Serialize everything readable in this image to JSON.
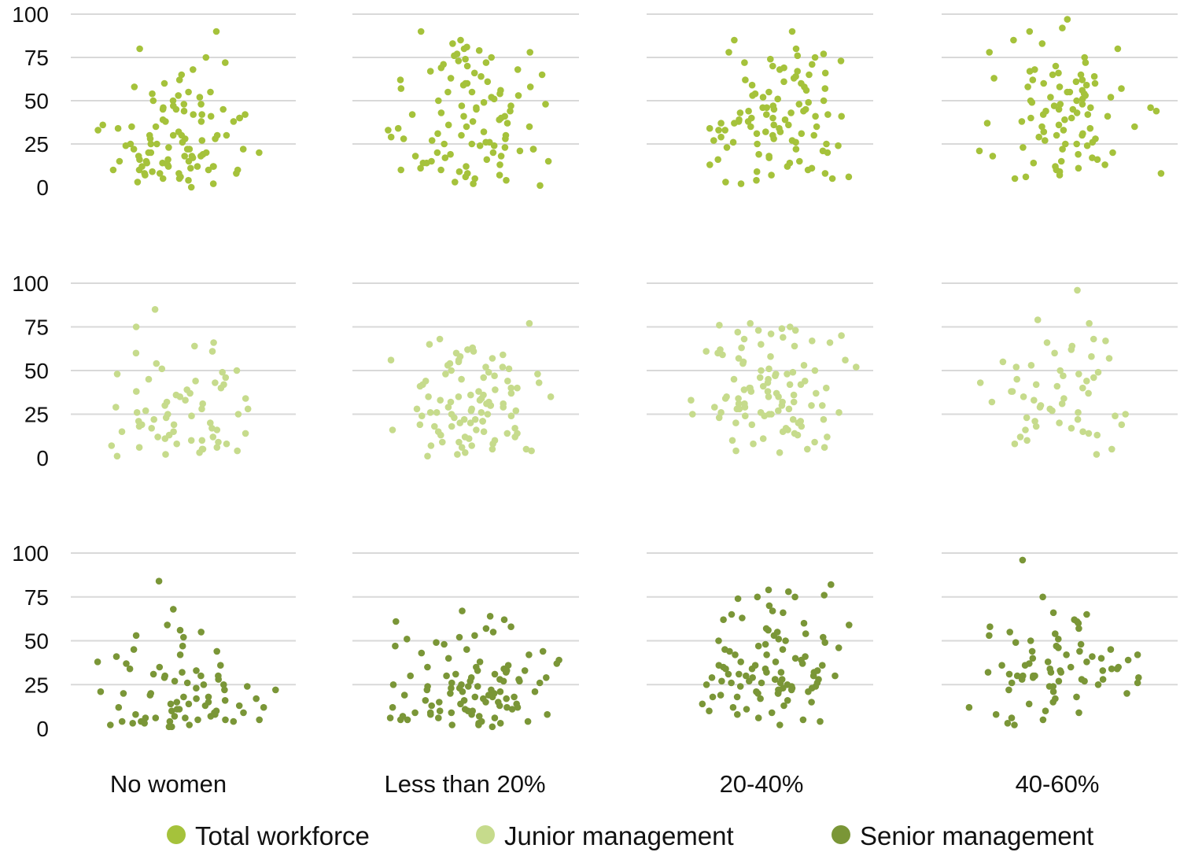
{
  "chart_data": {
    "type": "scatter",
    "title": "",
    "layout": "small multiples (3 rows x 4 columns), jittered strip plots",
    "columns": [
      "No women",
      "Less than 20%",
      "20-40%",
      "40-60%"
    ],
    "rows": [
      "Total workforce",
      "Junior management",
      "Senior management"
    ],
    "y_ticks": [
      0,
      25,
      50,
      75,
      100
    ],
    "y_tick_labels": [
      "0",
      "25",
      "50",
      "75",
      "100"
    ],
    "ylim": [
      0,
      100
    ],
    "grid": true,
    "legend_position": "bottom",
    "legend": [
      {
        "name": "Total workforce",
        "color": "#a5c23b"
      },
      {
        "name": "Junior management",
        "color": "#c6db8c"
      },
      {
        "name": "Senior management",
        "color": "#7a9637"
      }
    ],
    "panels": [
      {
        "row": "Total workforce",
        "column": "No women",
        "y": [
          12,
          18,
          22,
          25,
          5,
          8,
          15,
          30,
          40,
          20,
          10,
          14,
          28,
          35,
          45,
          50,
          60,
          38,
          22,
          18,
          16,
          12,
          8,
          6,
          4,
          25,
          32,
          42,
          55,
          65,
          72,
          80,
          45,
          30,
          20,
          10,
          8,
          12,
          15,
          18,
          22,
          25,
          28,
          30,
          35,
          40,
          48,
          52,
          58,
          62,
          68,
          75,
          90,
          55,
          45,
          38,
          28,
          20,
          15,
          10,
          5,
          3,
          2,
          0,
          12,
          18,
          24,
          30,
          36,
          42,
          48,
          54,
          20,
          16,
          14,
          12,
          10,
          8,
          22,
          26,
          30,
          34,
          38,
          42,
          46,
          50,
          23,
          11,
          47,
          53,
          19,
          27,
          33,
          39,
          41,
          44,
          9,
          7,
          13,
          17
        ]
      },
      {
        "row": "Total workforce",
        "column": "Less than 20%",
        "y": [
          5,
          10,
          15,
          20,
          25,
          30,
          35,
          40,
          45,
          50,
          55,
          60,
          65,
          70,
          75,
          80,
          85,
          90,
          67,
          42,
          38,
          22,
          18,
          12,
          8,
          3,
          28,
          33,
          48,
          52,
          58,
          62,
          24,
          26,
          27,
          29,
          31,
          34,
          36,
          14,
          16,
          19,
          21,
          23,
          11,
          9,
          7,
          44,
          46,
          49,
          53,
          57,
          61,
          64,
          69,
          72,
          77,
          17,
          13,
          6,
          4,
          2,
          1,
          32,
          37,
          41,
          43,
          47,
          51,
          54,
          56,
          59,
          63,
          66,
          68,
          71,
          73,
          74,
          76,
          78,
          79,
          81,
          83,
          15,
          20,
          25,
          30,
          35,
          22,
          24,
          26,
          28,
          18,
          14,
          10,
          39,
          41,
          47,
          55,
          60
        ]
      },
      {
        "row": "Total workforce",
        "column": "20-40%",
        "y": [
          5,
          10,
          15,
          20,
          25,
          30,
          35,
          40,
          45,
          50,
          55,
          60,
          65,
          70,
          75,
          80,
          85,
          90,
          3,
          8,
          12,
          18,
          22,
          28,
          32,
          38,
          42,
          48,
          52,
          58,
          62,
          68,
          72,
          78,
          24,
          26,
          34,
          36,
          44,
          46,
          54,
          56,
          64,
          66,
          74,
          76,
          14,
          16,
          29,
          31,
          39,
          41,
          49,
          51,
          59,
          61,
          69,
          71,
          27,
          33,
          37,
          43,
          47,
          53,
          57,
          63,
          67,
          73,
          77,
          2,
          6,
          11,
          17,
          21,
          23,
          19,
          13,
          9,
          7,
          4,
          35,
          36,
          37,
          38,
          39,
          30,
          31,
          32,
          33,
          34,
          40,
          41,
          42,
          43,
          44,
          45,
          46,
          25,
          26,
          27
        ]
      },
      {
        "row": "Total workforce",
        "column": "40-60%",
        "y": [
          5,
          10,
          15,
          20,
          25,
          30,
          35,
          40,
          45,
          50,
          55,
          60,
          65,
          70,
          75,
          80,
          85,
          90,
          97,
          92,
          83,
          78,
          72,
          68,
          62,
          58,
          52,
          48,
          42,
          38,
          32,
          28,
          22,
          18,
          12,
          8,
          24,
          26,
          44,
          46,
          54,
          56,
          64,
          66,
          34,
          36,
          14,
          16,
          47,
          49,
          51,
          53,
          57,
          59,
          61,
          63,
          41,
          43,
          37,
          39,
          29,
          31,
          27,
          33,
          23,
          21,
          19,
          17,
          13,
          11,
          9,
          7,
          6,
          45,
          50,
          55,
          40,
          35,
          30,
          25,
          46,
          48,
          52,
          44,
          42,
          58,
          60,
          62,
          65,
          67
        ]
      },
      {
        "row": "Junior management",
        "column": "No women",
        "y": [
          66,
          19,
          15,
          17,
          10,
          5,
          8,
          12,
          20,
          25,
          28,
          30,
          35,
          40,
          45,
          50,
          54,
          60,
          64,
          75,
          85,
          61,
          48,
          43,
          37,
          22,
          18,
          14,
          9,
          6,
          3,
          2,
          1,
          4,
          7,
          11,
          13,
          16,
          21,
          24,
          27,
          29,
          33,
          38,
          46,
          51,
          26,
          23,
          31,
          36,
          42,
          15,
          12,
          10,
          8,
          6,
          5,
          34,
          39,
          44,
          49,
          32,
          19,
          17,
          25,
          28
        ]
      },
      {
        "row": "Junior management",
        "column": "Less than 20%",
        "y": [
          54,
          29,
          13,
          5,
          20,
          25,
          30,
          35,
          40,
          45,
          50,
          55,
          60,
          65,
          68,
          77,
          10,
          15,
          8,
          3,
          2,
          1,
          4,
          6,
          7,
          9,
          11,
          12,
          14,
          16,
          18,
          21,
          22,
          23,
          24,
          26,
          27,
          28,
          31,
          32,
          33,
          34,
          36,
          37,
          38,
          39,
          41,
          42,
          43,
          44,
          46,
          47,
          48,
          49,
          51,
          52,
          53,
          56,
          57,
          58,
          59,
          61,
          62,
          63,
          20,
          25,
          30,
          35,
          15,
          19,
          22,
          26,
          28,
          32,
          17,
          5,
          7,
          9,
          12,
          14,
          16,
          18,
          21,
          24,
          27,
          29,
          31,
          33,
          36,
          40,
          44,
          48,
          52,
          56,
          35,
          26
        ]
      },
      {
        "row": "Junior management",
        "column": "20-40%",
        "y": [
          73,
          73,
          60,
          55,
          50,
          45,
          40,
          35,
          30,
          25,
          20,
          15,
          10,
          5,
          3,
          62,
          65,
          68,
          70,
          76,
          77,
          48,
          42,
          38,
          32,
          28,
          22,
          18,
          12,
          8,
          6,
          4,
          44,
          46,
          52,
          54,
          56,
          58,
          24,
          26,
          27,
          29,
          31,
          33,
          34,
          36,
          37,
          39,
          41,
          43,
          47,
          49,
          51,
          53,
          57,
          59,
          61,
          63,
          64,
          66,
          67,
          69,
          71,
          72,
          74,
          75,
          14,
          16,
          17,
          19,
          21,
          23,
          9,
          11,
          13,
          25,
          26,
          28,
          30,
          32,
          35,
          38,
          40,
          42,
          45,
          48,
          50,
          35,
          30,
          25,
          28,
          31,
          34,
          37,
          40,
          20,
          22,
          24,
          26,
          29
        ]
      },
      {
        "row": "Junior management",
        "column": "40-60%",
        "y": [
          58,
          38,
          30,
          27,
          23,
          96,
          79,
          77,
          67,
          66,
          62,
          55,
          50,
          48,
          45,
          42,
          40,
          35,
          32,
          28,
          25,
          20,
          18,
          15,
          12,
          8,
          5,
          2,
          52,
          47,
          43,
          38,
          33,
          29,
          24,
          21,
          17,
          14,
          60,
          64,
          68,
          57,
          53,
          49,
          46,
          44,
          41,
          37,
          34,
          31,
          26,
          22,
          19,
          16,
          13,
          10
        ]
      },
      {
        "row": "Senior management",
        "column": "No women",
        "y": [
          4,
          4,
          4,
          17,
          6,
          5,
          13,
          37,
          52,
          53,
          30,
          41,
          2,
          3,
          1,
          84,
          47,
          45,
          55,
          68,
          59,
          56,
          16,
          15,
          4,
          7,
          10,
          12,
          14,
          18,
          20,
          22,
          25,
          28,
          30,
          33,
          35,
          26,
          24,
          21,
          19,
          11,
          9,
          8,
          6,
          3,
          2,
          1,
          5,
          7,
          38,
          42,
          44,
          36,
          32,
          29,
          27,
          23,
          18,
          15,
          13,
          11,
          9,
          20,
          25,
          30,
          22,
          17,
          14,
          12,
          10,
          8,
          6,
          5,
          31,
          34
        ]
      },
      {
        "row": "Senior management",
        "column": "Less than 20%",
        "y": [
          35,
          57,
          62,
          67,
          52,
          48,
          45,
          42,
          38,
          33,
          30,
          27,
          24,
          21,
          18,
          15,
          12,
          9,
          6,
          3,
          2,
          1,
          5,
          8,
          11,
          14,
          17,
          20,
          23,
          26,
          29,
          32,
          35,
          39,
          43,
          47,
          51,
          55,
          58,
          61,
          64,
          4,
          7,
          10,
          13,
          16,
          19,
          22,
          25,
          28,
          31,
          34,
          37,
          40,
          44,
          49,
          53,
          6,
          9,
          12,
          15,
          18,
          21,
          24,
          27,
          30,
          33,
          36,
          8,
          10,
          12,
          14,
          16,
          18,
          20,
          22,
          24,
          26,
          28,
          3,
          5,
          7,
          9,
          11,
          13,
          15,
          17,
          19,
          21,
          23,
          25,
          27,
          29,
          31,
          33,
          2,
          4,
          6,
          8,
          10
        ]
      },
      {
        "row": "Senior management",
        "column": "20-40%",
        "y": [
          78,
          75,
          28,
          26,
          23,
          9,
          40,
          45,
          50,
          55,
          60,
          65,
          70,
          75,
          79,
          82,
          76,
          74,
          5,
          8,
          12,
          15,
          18,
          21,
          24,
          27,
          30,
          33,
          36,
          39,
          42,
          45,
          48,
          51,
          54,
          57,
          62,
          66,
          10,
          14,
          17,
          20,
          22,
          25,
          28,
          31,
          34,
          37,
          41,
          44,
          47,
          50,
          53,
          56,
          59,
          63,
          67,
          2,
          4,
          6,
          11,
          13,
          16,
          19,
          23,
          26,
          29,
          32,
          35,
          38,
          42,
          46,
          49,
          52,
          20,
          22,
          24,
          26,
          28,
          30,
          32,
          34,
          36,
          38,
          18,
          20,
          22,
          24,
          26,
          28,
          30,
          32,
          34,
          36,
          21,
          23,
          25,
          27,
          29,
          31
        ]
      },
      {
        "row": "Senior management",
        "column": "40-60%",
        "y": [
          61,
          60,
          48,
          45,
          41,
          30,
          20,
          10,
          96,
          75,
          66,
          65,
          62,
          57,
          55,
          53,
          50,
          47,
          44,
          40,
          38,
          35,
          33,
          30,
          28,
          25,
          22,
          18,
          15,
          12,
          8,
          5,
          2,
          3,
          6,
          9,
          14,
          17,
          21,
          24,
          27,
          29,
          32,
          34,
          36,
          37,
          39,
          42,
          46,
          49,
          51,
          54,
          58,
          30,
          32,
          34,
          36,
          38,
          26,
          28,
          30,
          32,
          34,
          24,
          26,
          28,
          40,
          42,
          44,
          35,
          33,
          31,
          29,
          27
        ]
      }
    ]
  }
}
